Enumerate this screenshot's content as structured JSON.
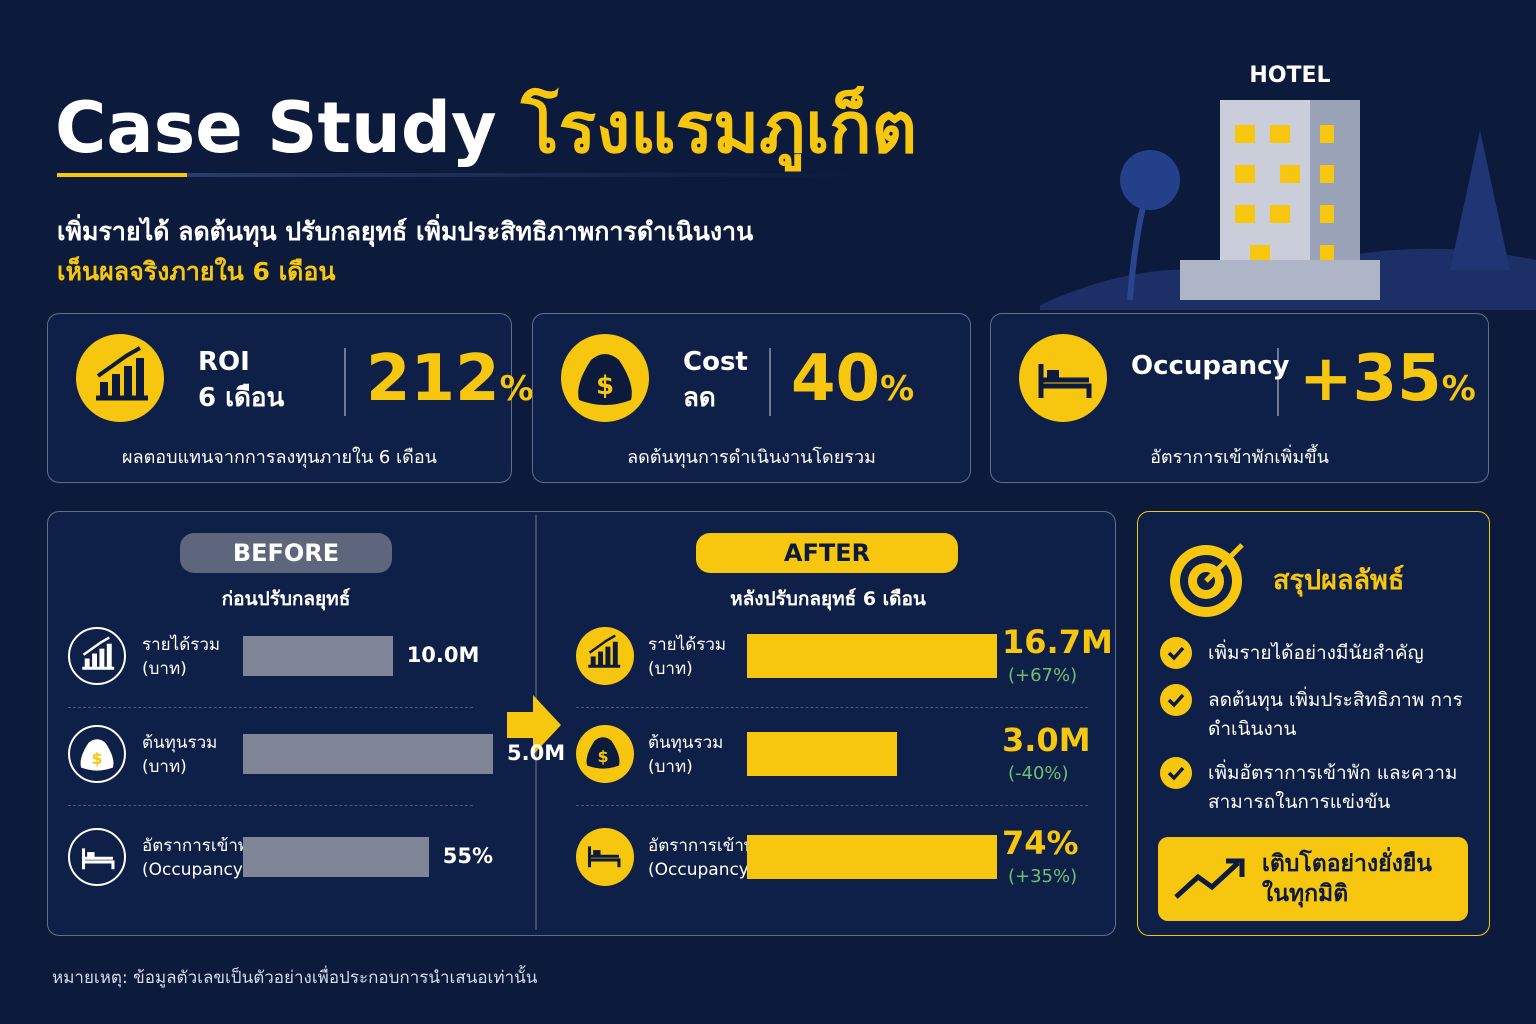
{
  "header": {
    "title_en": "Case Study",
    "title_th": "โรงแรมภูเก็ต",
    "subtitle": "เพิ่มรายได้ ลดต้นทุน ปรับกลยุทธ์ เพิ่มประสิทธิภาพการดำเนินงาน",
    "highlight": "เห็นผลจริงภายใน 6 เดือน",
    "hotel_sign": "HOTEL"
  },
  "kpis": [
    {
      "label": "ROI",
      "label2": "6 เดือน",
      "value": "212",
      "unit": "%",
      "caption": "ผลตอบแทนจากการลงทุนภายใน 6 เดือน"
    },
    {
      "label": "Cost",
      "label2": "ลด",
      "value": "40",
      "unit": "%",
      "caption": "ลดต้นทุนการดำเนินงานโดยรวม"
    },
    {
      "label": "Occupancy",
      "value": "+35",
      "unit": "%",
      "caption": "อัตราการเข้าพักเพิ่มขึ้น"
    }
  ],
  "before": {
    "tag": "BEFORE",
    "subtitle": "ก่อนปรับกลยุทธ์",
    "rows": [
      {
        "label": "รายได้รวม",
        "sub": "(บาท)",
        "value": 10.0,
        "value_label": "10.0M"
      },
      {
        "label": "ต้นทุนรวม",
        "sub": "(บาท)",
        "value": 5.0,
        "value_label": "5.0M"
      },
      {
        "label": "อัตราการเข้าพัก",
        "sub": "(Occupancy)",
        "value": 55,
        "value_label": "55%"
      }
    ]
  },
  "after": {
    "tag": "AFTER",
    "subtitle": "หลังปรับกลยุทธ์ 6 เดือน",
    "rows": [
      {
        "label": "รายได้รวม",
        "sub": "(บาท)",
        "value": 16.7,
        "value_label": "16.7M",
        "change": "(+67%)"
      },
      {
        "label": "ต้นทุนรวม",
        "sub": "(บาท)",
        "value": 3.0,
        "value_label": "3.0M",
        "change": "(-40%)"
      },
      {
        "label": "อัตราการเข้าพัก",
        "sub": "(Occupancy)",
        "value": 74,
        "value_label": "74%",
        "change": "(+35%)"
      }
    ]
  },
  "summary": {
    "title": "สรุปผลลัพธ์",
    "items": [
      "เพิ่มรายได้อย่างมีนัยสำคัญ",
      "ลดต้นทุน เพิ่มประสิทธิภาพ การดำเนินงาน",
      "เพิ่มอัตราการเข้าพัก และความสามารถในการแข่งขัน"
    ],
    "footer": "เติบโตอย่างยั่งยืน ในทุกมิติ"
  },
  "note": "หมายเหตุ: ข้อมูลตัวเลขเป็นตัวอย่างเพื่อประกอบการนำเสนอเท่านั้น"
}
